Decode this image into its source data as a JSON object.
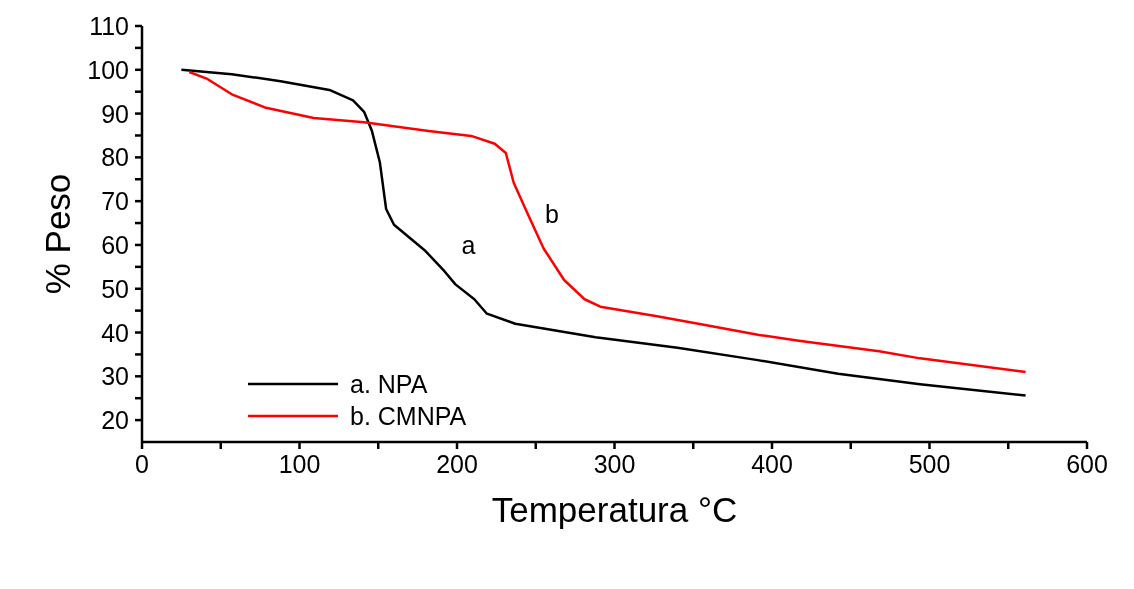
{
  "chart_data": {
    "type": "line",
    "xlabel": "Temperatura °C",
    "ylabel": "% Peso",
    "xlim": [
      0,
      600
    ],
    "ylim": [
      15,
      110
    ],
    "xticks": [
      0,
      {
        "value": 50,
        "label": null
      },
      100,
      {
        "value": 150,
        "label": null
      },
      200,
      {
        "value": 250,
        "label": null
      },
      300,
      {
        "value": 350,
        "label": null
      },
      400,
      {
        "value": 450,
        "label": null
      },
      500,
      {
        "value": 550,
        "label": null
      },
      600
    ],
    "yticks": [
      20,
      {
        "value": 25,
        "label": null
      },
      30,
      {
        "value": 35,
        "label": null
      },
      40,
      {
        "value": 45,
        "label": null
      },
      50,
      {
        "value": 55,
        "label": null
      },
      60,
      {
        "value": 65,
        "label": null
      },
      70,
      {
        "value": 75,
        "label": null
      },
      80,
      {
        "value": 85,
        "label": null
      },
      90,
      {
        "value": 95,
        "label": null
      },
      100,
      {
        "value": 105,
        "label": null
      },
      110
    ],
    "legend": "bottom left",
    "marker": "none",
    "line_style": "solid",
    "series": [
      {
        "name": "a. NPA",
        "color": "#000000",
        "x": [
          25,
          57,
          88,
          119,
          134,
          141,
          146,
          151,
          155,
          160,
          180,
          192,
          199,
          211,
          219,
          237,
          288,
          340,
          391,
          442,
          494,
          561
        ],
        "values": [
          100,
          99,
          97.4,
          95.4,
          93,
          90.4,
          86,
          78.9,
          68.2,
          64.6,
          58.6,
          54,
          51,
          47.6,
          44.3,
          42,
          38.9,
          36.5,
          33.7,
          30.6,
          28.2,
          25.6
        ]
      },
      {
        "name": "b. CMNPA",
        "color": "#ff0000",
        "x": [
          30,
          41,
          57,
          78,
          109,
          141,
          182,
          209,
          224,
          231,
          236,
          245,
          255,
          268,
          281,
          291,
          327,
          355,
          391,
          417,
          468,
          494,
          561
        ],
        "values": [
          99.5,
          98,
          94.4,
          91.4,
          89,
          88,
          86,
          84.9,
          83.1,
          81,
          74.2,
          67,
          59.2,
          52,
          47.6,
          45.9,
          43.7,
          41.9,
          39.5,
          38.1,
          35.7,
          34.1,
          31
        ]
      }
    ],
    "annotations": [
      "a",
      "b"
    ]
  }
}
